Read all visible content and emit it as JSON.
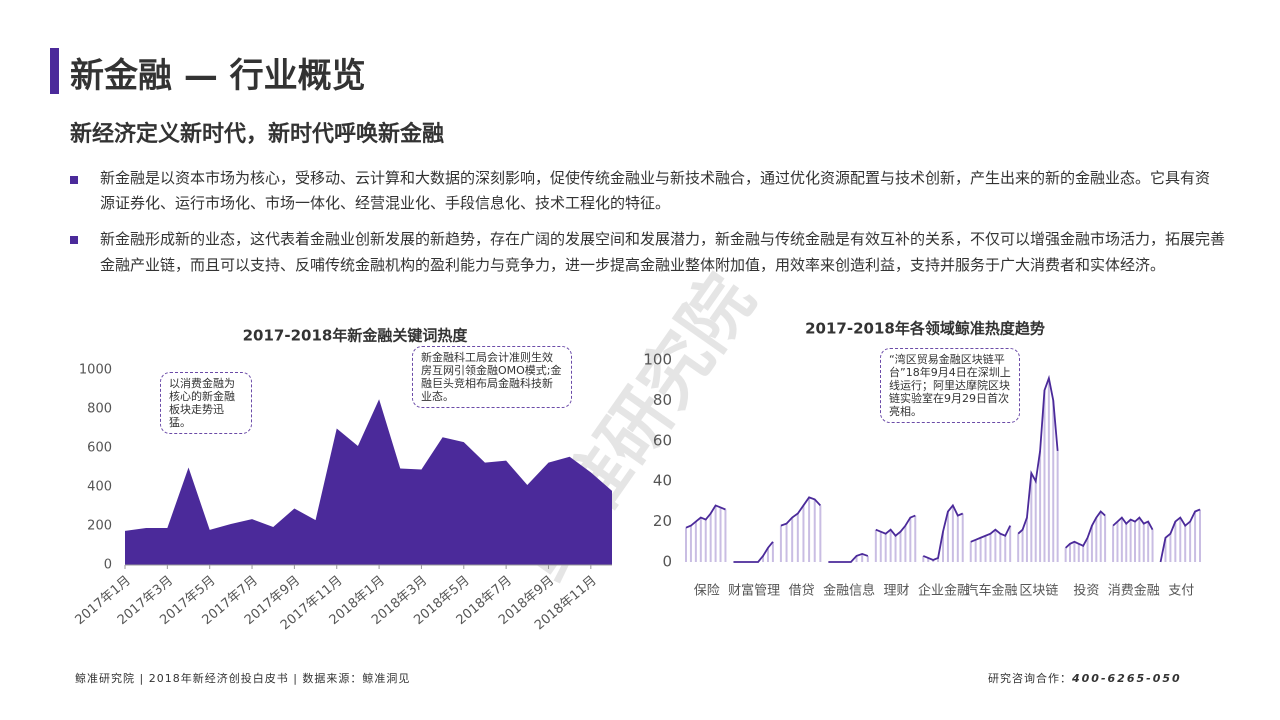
{
  "header": {
    "title": "新金融 — 行业概览",
    "subtitle": "新经济定义新时代，新时代呼唤新金融"
  },
  "bullets": [
    "新金融是以资本市场为核心，受移动、云计算和大数据的深刻影响，促使传统金融业与新技术融合，通过优化资源配置与技术创新，产生出来的新的金融业态。它具有资源证券化、运行市场化、市场一体化、经营混业化、手段信息化、技术工程化的特征。",
    "新金融形成新的业态，这代表着金融业创新发展的新趋势，存在广阔的发展空间和发展潜力，新金融与传统金融是有效互补的关系，不仅可以增强金融市场活力，拓展完善金融产业链，而且可以支持、反哺传统金融机构的盈利能力与竞争力，进一步提高金融业整体附加值，用效率来创造利益，支持并服务于广大消费者和实体经济。"
  ],
  "watermark": "鲸准研究院",
  "chart_data": [
    {
      "type": "area",
      "title": "2017-2018年新金融关键词热度",
      "color": "#4b2a9a",
      "categories": [
        "2017年1月",
        null,
        "2017年3月",
        null,
        "2017年5月",
        null,
        "2017年7月",
        null,
        "2017年9月",
        null,
        "2017年11月",
        null,
        "2018年1月",
        null,
        "2018年3月",
        null,
        "2018年5月",
        null,
        "2018年7月",
        null,
        "2018年9月",
        null,
        "2018年11月",
        null
      ],
      "values": [
        175,
        190,
        190,
        500,
        180,
        210,
        235,
        195,
        290,
        230,
        700,
        610,
        850,
        495,
        490,
        655,
        630,
        525,
        535,
        410,
        525,
        555,
        475,
        380
      ],
      "ylim": [
        0,
        1000
      ],
      "yticks": [
        0,
        200,
        400,
        600,
        800,
        1000
      ],
      "annotations": [
        "以消费金融为核心的新金融板块走势迅猛。",
        "新金融科工局会计准则生效房互网引领金融OMO模式;金融巨头竞相布局金融科技新业态。"
      ]
    },
    {
      "type": "line",
      "title": "2017-2018年各领域鲸准热度趋势",
      "color": "#4b2a9a",
      "bar_color": "#c9bde3",
      "groups": [
        {
          "name": "保险",
          "values": [
            17,
            18,
            20,
            22,
            21,
            24,
            28,
            27,
            26
          ]
        },
        {
          "name": "财富管理",
          "values": [
            0,
            0,
            0,
            0,
            0,
            0,
            3,
            7,
            10
          ]
        },
        {
          "name": "借贷",
          "values": [
            18,
            19,
            22,
            24,
            28,
            32,
            31,
            28
          ]
        },
        {
          "name": "金融信息",
          "values": [
            0,
            0,
            0,
            0,
            0,
            3,
            4,
            3
          ]
        },
        {
          "name": "理财",
          "values": [
            16,
            15,
            14,
            16,
            13,
            15,
            18,
            22,
            23
          ]
        },
        {
          "name": "企业金融",
          "values": [
            3,
            2,
            1,
            2,
            15,
            25,
            28,
            23,
            24
          ]
        },
        {
          "name": "汽车金融",
          "values": [
            10,
            11,
            12,
            13,
            14,
            16,
            14,
            13,
            18
          ]
        },
        {
          "name": "区块链",
          "values": [
            14,
            16,
            22,
            44,
            40,
            55,
            85,
            91,
            80,
            55
          ]
        },
        {
          "name": "投资",
          "values": [
            7,
            9,
            10,
            9,
            8,
            12,
            18,
            22,
            25,
            23
          ]
        },
        {
          "name": "消费金融",
          "values": [
            18,
            20,
            22,
            19,
            21,
            20,
            22,
            19,
            20,
            16
          ]
        },
        {
          "name": "支付",
          "values": [
            0,
            12,
            14,
            20,
            22,
            18,
            20,
            25,
            26
          ]
        }
      ],
      "ylim": [
        0,
        100
      ],
      "yticks": [
        0,
        20,
        40,
        60,
        80,
        100
      ],
      "annotation": "“湾区贸易金融区块链平台”18年9月4日在深圳上线运行；阿里达摩院区块链实验室在9月29日首次亮相。"
    }
  ],
  "footer": {
    "left": "鲸准研究院 | 2018年新经济创投白皮书 | 数据来源：鲸准洞见",
    "right_label": "研究咨询合作：",
    "phone": "400-6265-050"
  }
}
